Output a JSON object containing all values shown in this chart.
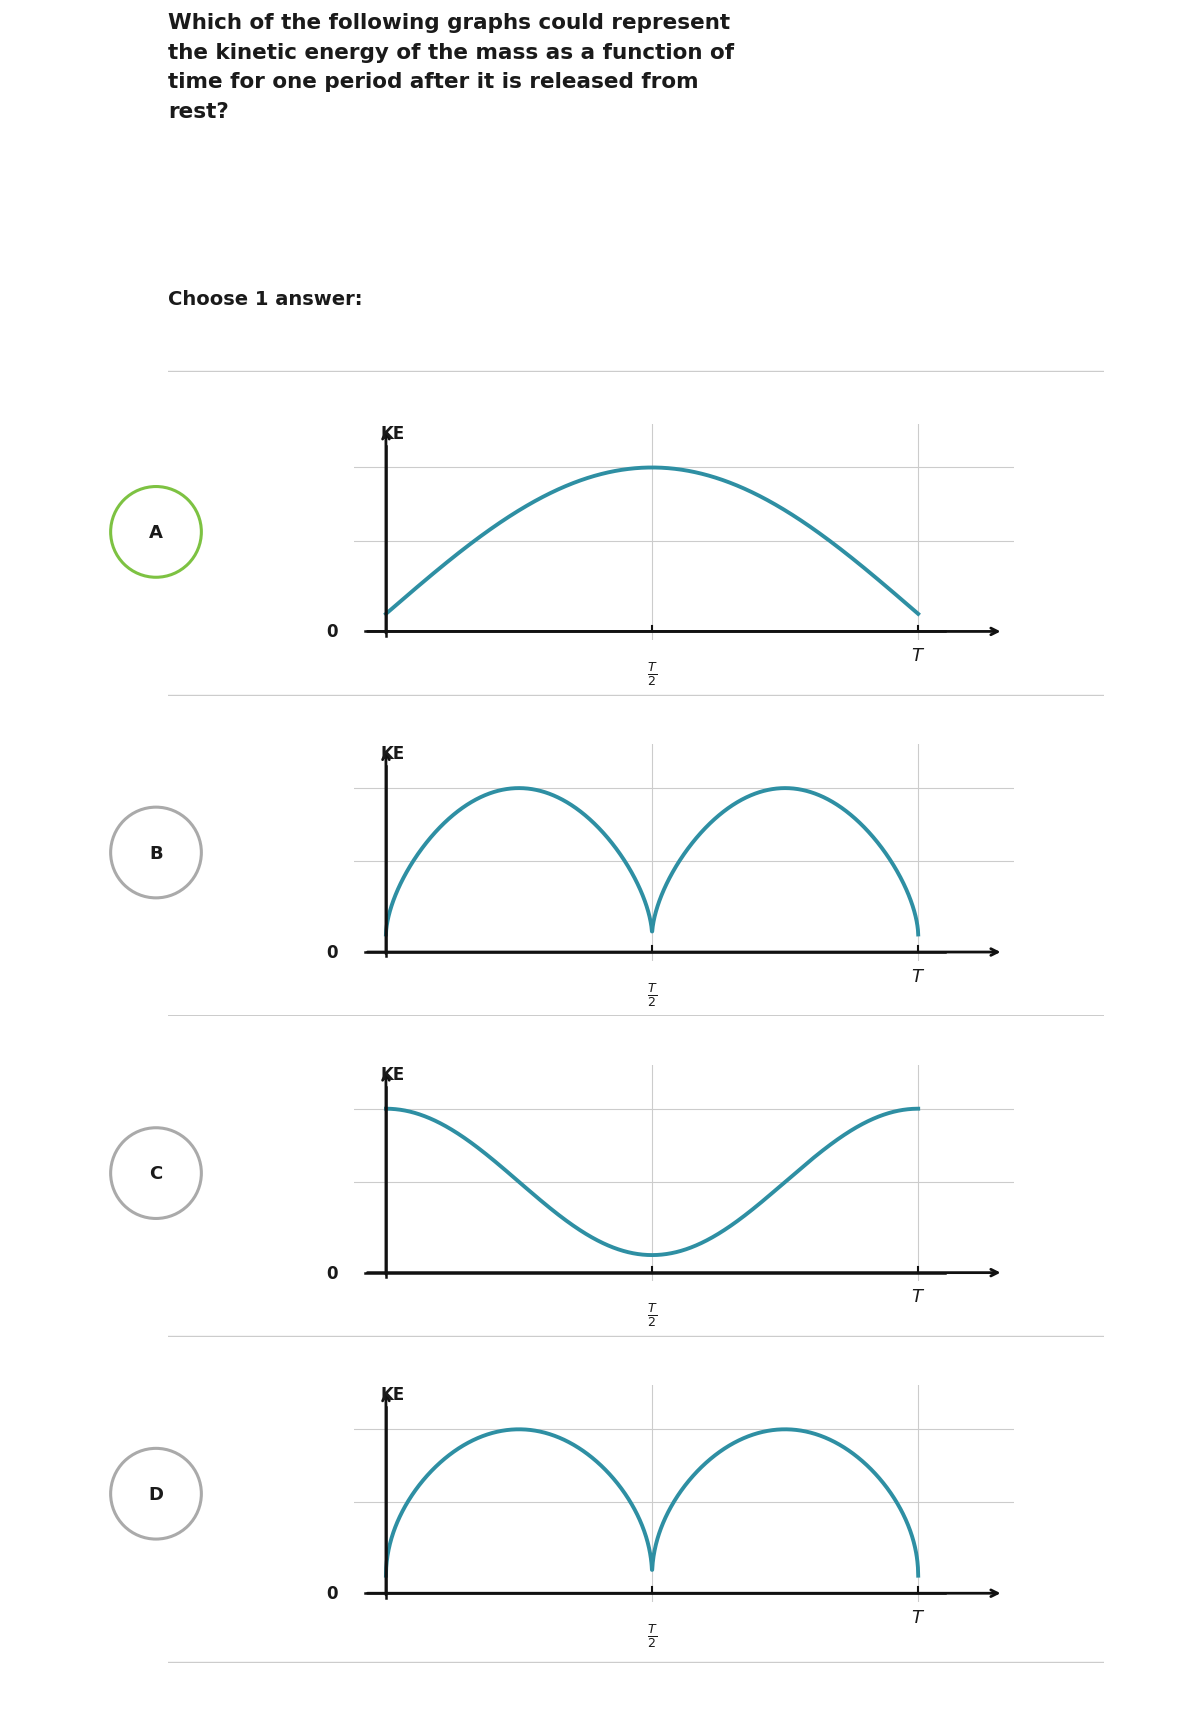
{
  "title": "Which of the following graphs could represent\nthe kinetic energy of the mass as a function of\ntime for one period after it is released from\nrest?",
  "choose_text": "Choose 1 answer:",
  "curve_color": "#2e8fa3",
  "axis_color": "#111111",
  "grid_color": "#cccccc",
  "label_color": "#1a1a1a",
  "circle_color_A": "#7dc242",
  "circle_color_BCD": "#aaaaaa",
  "background": "#ffffff",
  "fig_width": 12,
  "fig_height": 17.33,
  "panels": [
    {
      "label": "A",
      "type": "single_arch",
      "circle_filled": false,
      "circle_green": true
    },
    {
      "label": "B",
      "type": "double_arch_sharp",
      "circle_filled": false,
      "circle_green": false
    },
    {
      "label": "C",
      "type": "cos_sq",
      "circle_filled": false,
      "circle_green": false
    },
    {
      "label": "D",
      "type": "double_arch_small",
      "circle_filled": false,
      "circle_green": false
    }
  ]
}
